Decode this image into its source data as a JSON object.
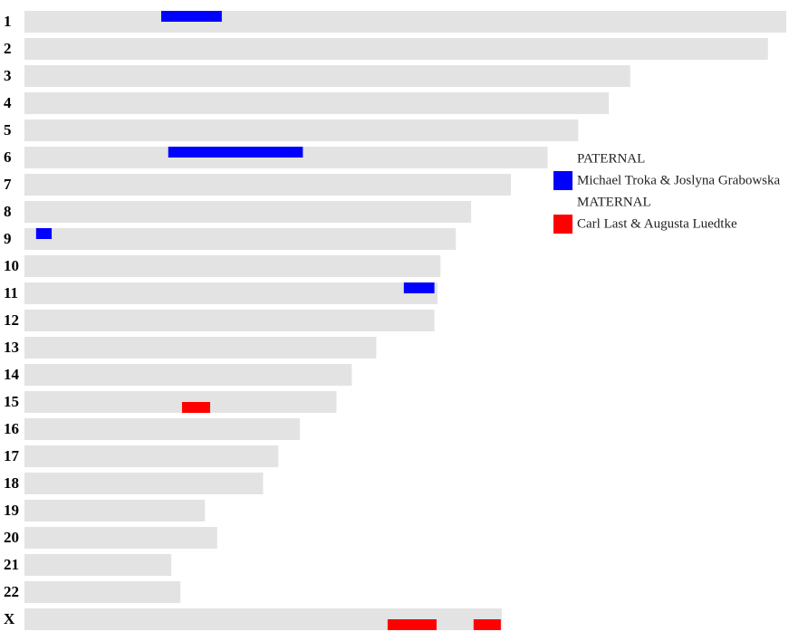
{
  "chromosomes": [
    {
      "label": "1",
      "length": 249,
      "paternal": [
        {
          "start": 44.7,
          "end": 64.5
        }
      ],
      "maternal": []
    },
    {
      "label": "2",
      "length": 243,
      "paternal": [],
      "maternal": []
    },
    {
      "label": "3",
      "length": 198,
      "paternal": [],
      "maternal": []
    },
    {
      "label": "4",
      "length": 191,
      "paternal": [],
      "maternal": []
    },
    {
      "label": "5",
      "length": 181,
      "paternal": [],
      "maternal": []
    },
    {
      "label": "6",
      "length": 171,
      "paternal": [
        {
          "start": 47,
          "end": 91
        }
      ],
      "maternal": []
    },
    {
      "label": "7",
      "length": 159,
      "paternal": [],
      "maternal": []
    },
    {
      "label": "8",
      "length": 146,
      "paternal": [],
      "maternal": []
    },
    {
      "label": "9",
      "length": 141,
      "paternal": [
        {
          "start": 3.8,
          "end": 8.9
        }
      ],
      "maternal": []
    },
    {
      "label": "10",
      "length": 136,
      "paternal": [],
      "maternal": []
    },
    {
      "label": "11",
      "length": 135,
      "paternal": [
        {
          "start": 124,
          "end": 134
        }
      ],
      "maternal": []
    },
    {
      "label": "12",
      "length": 134,
      "paternal": [],
      "maternal": []
    },
    {
      "label": "13",
      "length": 115,
      "paternal": [],
      "maternal": []
    },
    {
      "label": "14",
      "length": 107,
      "paternal": [],
      "maternal": []
    },
    {
      "label": "15",
      "length": 102,
      "paternal": [],
      "maternal": [
        {
          "start": 51.5,
          "end": 60.7
        }
      ]
    },
    {
      "label": "16",
      "length": 90,
      "paternal": [],
      "maternal": []
    },
    {
      "label": "17",
      "length": 83,
      "paternal": [],
      "maternal": []
    },
    {
      "label": "18",
      "length": 78,
      "paternal": [],
      "maternal": []
    },
    {
      "label": "19",
      "length": 59,
      "paternal": [],
      "maternal": []
    },
    {
      "label": "20",
      "length": 63,
      "paternal": [],
      "maternal": []
    },
    {
      "label": "21",
      "length": 48,
      "paternal": [],
      "maternal": []
    },
    {
      "label": "22",
      "length": 51,
      "paternal": [],
      "maternal": []
    },
    {
      "label": "X",
      "length": 156,
      "paternal": [],
      "maternal": [
        {
          "start": 118.7,
          "end": 134.7
        },
        {
          "start": 146.8,
          "end": 155.7
        }
      ]
    }
  ],
  "legend": {
    "paternal": {
      "heading": "PATERNAL",
      "name": "Michael Troka & Joslyna Grabowska",
      "color": "#0000ff"
    },
    "maternal": {
      "heading": "MATERNAL",
      "name": "Carl Last & Augusta Luedtke",
      "color": "#ff0000"
    }
  },
  "bar_color": "#e3e3e3"
}
